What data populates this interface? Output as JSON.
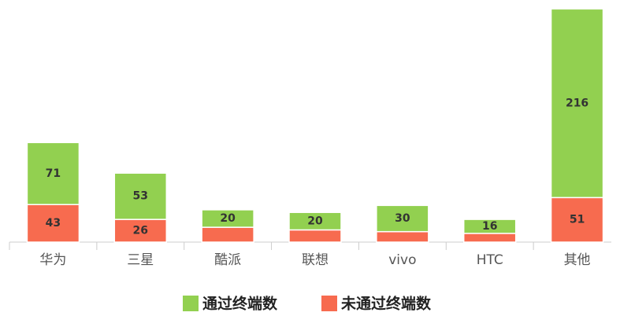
{
  "chart_data": {
    "type": "bar",
    "stacked": true,
    "categories": [
      "华为",
      "三星",
      "酷派",
      "联想",
      "vivo",
      "HTC",
      "其他"
    ],
    "series": [
      {
        "name": "未通过终端数",
        "color": "#f76b4f",
        "values": [
          43,
          26,
          17,
          14,
          12,
          10,
          51
        ],
        "value_labels": [
          "43",
          "26",
          null,
          null,
          null,
          null,
          "51"
        ]
      },
      {
        "name": "通过终端数",
        "color": "#92d050",
        "values": [
          71,
          53,
          20,
          20,
          30,
          16,
          216
        ]
      }
    ],
    "ylim": [
      0,
      270
    ],
    "legend": "bottom"
  }
}
